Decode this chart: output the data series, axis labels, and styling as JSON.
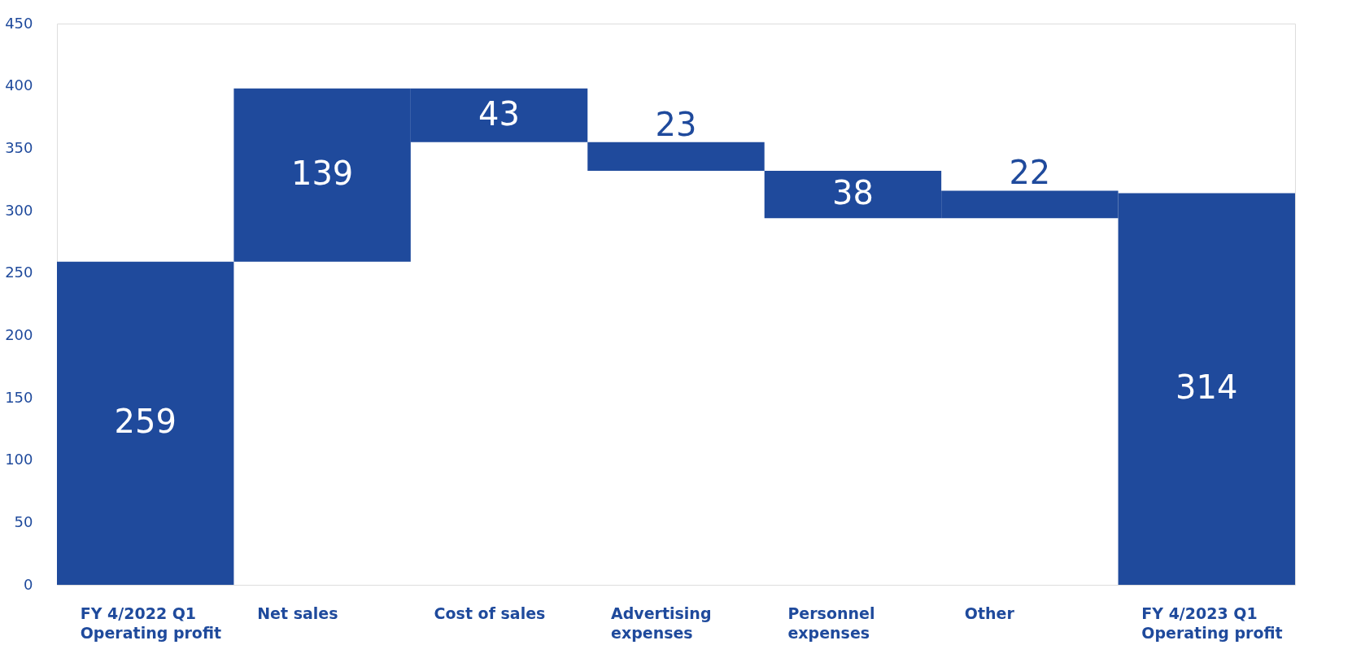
{
  "chart_data": {
    "type": "bar",
    "categories": [
      "FY 4/2022 Q1\nOperating profit",
      "Net sales",
      "Cost of sales",
      "Advertising\nexpenses",
      "Personnel\nexpenses",
      "Other",
      "FY 4/2023 Q1\nOperating profit"
    ],
    "base": [
      0,
      259,
      398,
      355,
      332,
      294,
      0
    ],
    "values": [
      259,
      139,
      -43,
      -23,
      -38,
      22,
      314
    ],
    "value_labels": [
      "259",
      "139",
      "43",
      "23",
      "38",
      "22",
      "314"
    ],
    "color": "#1f4a9c",
    "ylim": [
      0,
      450
    ],
    "yticks": [
      0,
      50,
      100,
      150,
      200,
      250,
      300,
      350,
      400,
      450
    ],
    "grid": false
  }
}
